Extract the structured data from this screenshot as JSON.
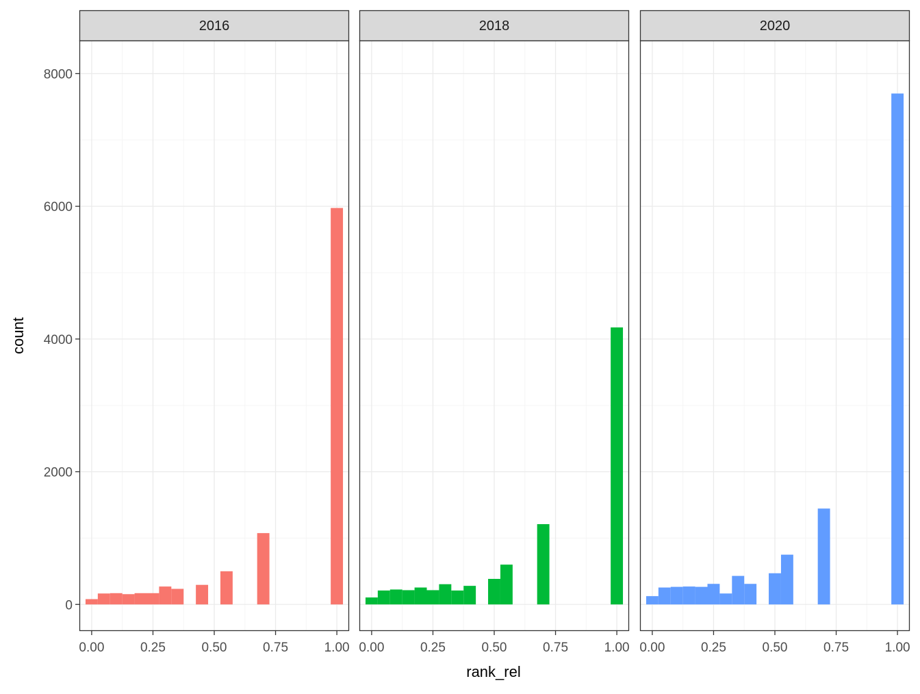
{
  "chart_data": {
    "type": "bar",
    "chart_kind": "faceted histogram",
    "xlabel": "rank_rel",
    "ylabel": "count",
    "xlim": [
      -0.05,
      1.05
    ],
    "ylim": [
      -400,
      8500
    ],
    "x_ticks": [
      "0.00",
      "0.25",
      "0.50",
      "0.75",
      "1.00"
    ],
    "y_ticks": [
      "0",
      "2000",
      "4000",
      "6000",
      "8000"
    ],
    "bin_width": 0.05,
    "grid": true,
    "legend": "none",
    "facets": [
      {
        "label": "2016",
        "color": "#F8766D",
        "bins": [
          {
            "x": 0.0,
            "count": 80
          },
          {
            "x": 0.05,
            "count": 165
          },
          {
            "x": 0.1,
            "count": 170
          },
          {
            "x": 0.15,
            "count": 155
          },
          {
            "x": 0.2,
            "count": 170
          },
          {
            "x": 0.25,
            "count": 170
          },
          {
            "x": 0.3,
            "count": 270
          },
          {
            "x": 0.35,
            "count": 235
          },
          {
            "x": 0.45,
            "count": 295
          },
          {
            "x": 0.55,
            "count": 500
          },
          {
            "x": 0.7,
            "count": 1075
          },
          {
            "x": 1.0,
            "count": 5975
          }
        ]
      },
      {
        "label": "2018",
        "color": "#00BA38",
        "bins": [
          {
            "x": 0.0,
            "count": 105
          },
          {
            "x": 0.05,
            "count": 210
          },
          {
            "x": 0.1,
            "count": 225
          },
          {
            "x": 0.15,
            "count": 215
          },
          {
            "x": 0.2,
            "count": 255
          },
          {
            "x": 0.25,
            "count": 215
          },
          {
            "x": 0.3,
            "count": 305
          },
          {
            "x": 0.35,
            "count": 210
          },
          {
            "x": 0.4,
            "count": 280
          },
          {
            "x": 0.5,
            "count": 385
          },
          {
            "x": 0.55,
            "count": 600
          },
          {
            "x": 0.7,
            "count": 1210
          },
          {
            "x": 1.0,
            "count": 4175
          }
        ]
      },
      {
        "label": "2020",
        "color": "#619CFF",
        "bins": [
          {
            "x": 0.0,
            "count": 125
          },
          {
            "x": 0.05,
            "count": 255
          },
          {
            "x": 0.1,
            "count": 265
          },
          {
            "x": 0.15,
            "count": 270
          },
          {
            "x": 0.2,
            "count": 265
          },
          {
            "x": 0.25,
            "count": 310
          },
          {
            "x": 0.3,
            "count": 165
          },
          {
            "x": 0.35,
            "count": 430
          },
          {
            "x": 0.4,
            "count": 310
          },
          {
            "x": 0.5,
            "count": 470
          },
          {
            "x": 0.55,
            "count": 750
          },
          {
            "x": 0.7,
            "count": 1445
          },
          {
            "x": 1.0,
            "count": 7700
          }
        ]
      }
    ]
  },
  "colors": {
    "strip_fill": "#d9d9d9",
    "grid_major": "#ebebeb",
    "grid_minor": "#f5f5f5",
    "panel_border": "#333333",
    "tick_text": "#4d4d4d",
    "title_text": "#000000"
  }
}
